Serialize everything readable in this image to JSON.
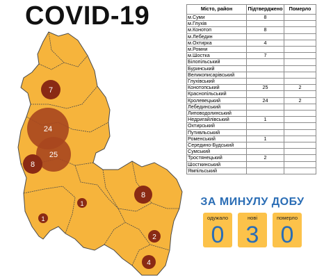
{
  "title": "COVID-19",
  "table": {
    "headers": [
      "Місто, район",
      "Підтверджено",
      "Померло"
    ],
    "rows": [
      [
        "м.Суми",
        "8",
        ""
      ],
      [
        "м.Глухів",
        "",
        ""
      ],
      [
        "м.Конотоп",
        "8",
        ""
      ],
      [
        "м.Лебедин",
        "",
        ""
      ],
      [
        "м.Охтирка",
        "4",
        ""
      ],
      [
        "м.Ромни",
        "",
        ""
      ],
      [
        "м.Шостка",
        "7",
        ""
      ],
      [
        "Білопільський",
        "",
        ""
      ],
      [
        "Буринський",
        "",
        ""
      ],
      [
        "Великописарівський",
        "",
        ""
      ],
      [
        "Глухівський",
        "",
        ""
      ],
      [
        "Конотопський",
        "25",
        "2"
      ],
      [
        "Краснопільський",
        "",
        ""
      ],
      [
        "Кролевецький",
        "24",
        "2"
      ],
      [
        "Лебединський",
        "",
        ""
      ],
      [
        "Липоводолинський",
        "",
        ""
      ],
      [
        "Недригайлівський",
        "1",
        ""
      ],
      [
        "Охтирський",
        "",
        ""
      ],
      [
        "Путивльський",
        "",
        ""
      ],
      [
        "Роменський",
        "1",
        ""
      ],
      [
        "Середино-Будський",
        "",
        ""
      ],
      [
        "Сумський",
        "",
        ""
      ],
      [
        "Тростянецький",
        "2",
        ""
      ],
      [
        "Шосткинський",
        "",
        ""
      ],
      [
        "Ямпільський",
        "",
        ""
      ]
    ]
  },
  "daily": {
    "title": "ЗА МИНУЛУ ДОБУ",
    "items": [
      {
        "label": "одужало",
        "value": "0"
      },
      {
        "label": "нові",
        "value": "3"
      },
      {
        "label": "померло",
        "value": "0"
      }
    ]
  },
  "map_markers": [
    {
      "label": "7",
      "name": "shostka"
    },
    {
      "label": "24",
      "name": "krolevets"
    },
    {
      "label": "25",
      "name": "konotop-district"
    },
    {
      "label": "8",
      "name": "konotop-city"
    },
    {
      "label": "8",
      "name": "sumy"
    },
    {
      "label": "1",
      "name": "nedryhailiv"
    },
    {
      "label": "1",
      "name": "romny"
    },
    {
      "label": "2",
      "name": "trostianets"
    },
    {
      "label": "4",
      "name": "okhtyrka"
    }
  ],
  "colors": {
    "region_fill": "#f6b43c",
    "border": "#4a4a4a",
    "marker_big": "#a8461e",
    "marker_small": "#8a2a14",
    "accent_blue": "#2a6db5",
    "box_fill": "#fcc24a"
  }
}
